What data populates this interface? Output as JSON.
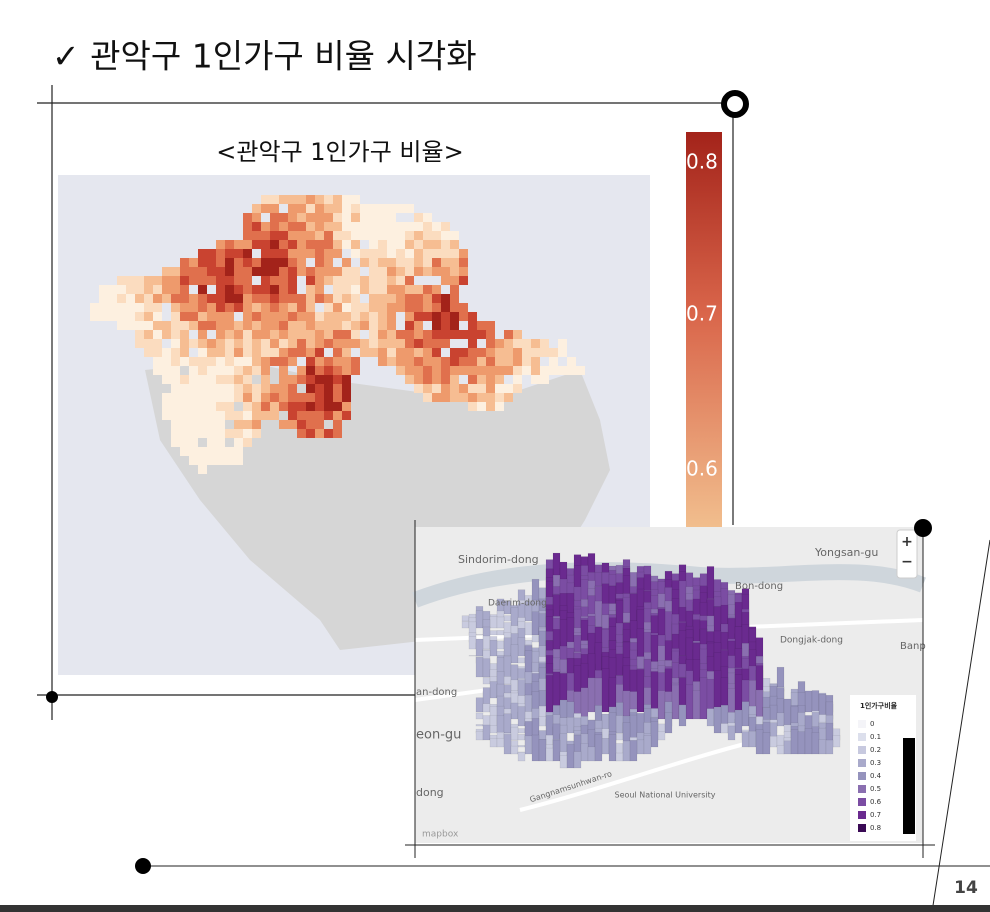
{
  "header": {
    "title": "✓ 관악구 1인가구 비율 시각화"
  },
  "heatmap": {
    "title": "<관악구 1인가구 비율>",
    "colorbar_ticks": [
      "0.8",
      "0.7",
      "0.6"
    ]
  },
  "map3d": {
    "labels": [
      "Sindorim-dong",
      "Daerim-dong",
      "Bon-dong",
      "Yongsan-gu",
      "Dongjak-dong",
      "Banp",
      "an-dong",
      "eon-gu",
      "dong",
      "Seoul National University",
      "Gangnamsunhwan-ro"
    ],
    "controls": [
      "+",
      "−"
    ],
    "legend": {
      "title": "1인가구비율",
      "items": [
        "0",
        "0.1",
        "0.2",
        "0.3",
        "0.4",
        "0.5",
        "0.6",
        "0.7",
        "0.8"
      ]
    },
    "attribution": "mapbox"
  },
  "footer": {
    "page": "14"
  }
}
